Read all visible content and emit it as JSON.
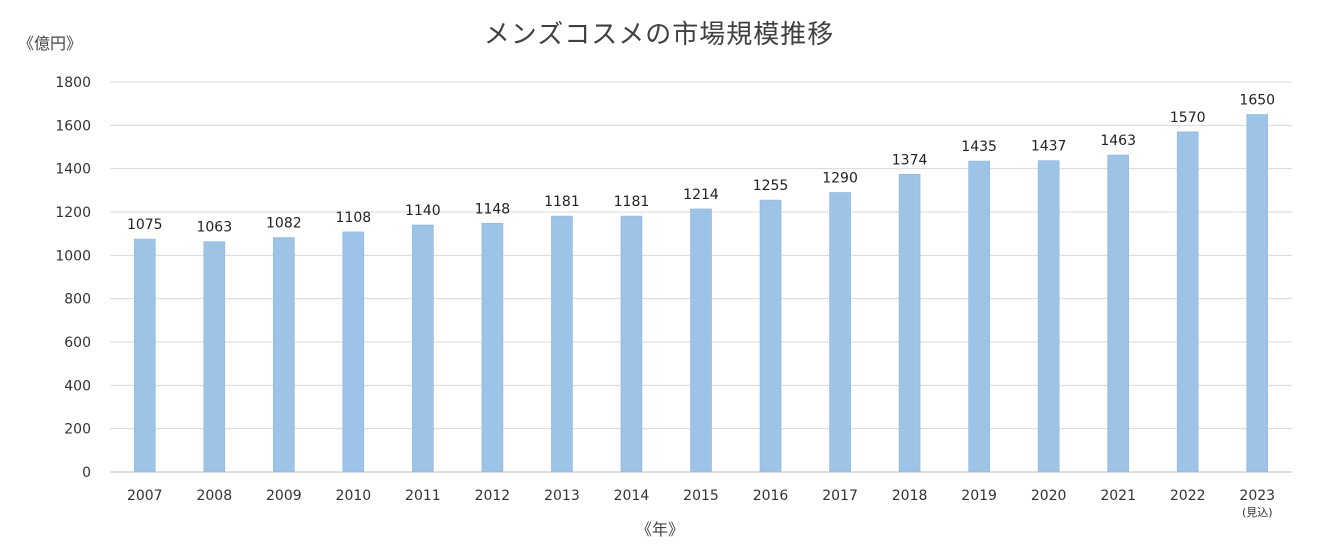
{
  "chart_data": {
    "type": "bar",
    "title": "メンズコスメの市場規模推移",
    "ylabel": "《億円》",
    "xlabel": "《年》",
    "categories": [
      "2007",
      "2008",
      "2009",
      "2010",
      "2011",
      "2012",
      "2013",
      "2014",
      "2015",
      "2016",
      "2017",
      "2018",
      "2019",
      "2020",
      "2021",
      "2022",
      "2023"
    ],
    "category_notes": {
      "2023": "(見込)"
    },
    "values": [
      1075,
      1063,
      1082,
      1108,
      1140,
      1148,
      1181,
      1181,
      1214,
      1255,
      1290,
      1374,
      1435,
      1437,
      1463,
      1570,
      1650
    ],
    "ylim": [
      0,
      1800
    ],
    "yticks": [
      0,
      200,
      400,
      600,
      800,
      1000,
      1200,
      1400,
      1600,
      1800
    ],
    "grid": true,
    "legend": "none",
    "bar_color": "#9dc3e6",
    "bar_edge_color": "#8fb5dc",
    "grid_color": "#d9d9d9"
  }
}
